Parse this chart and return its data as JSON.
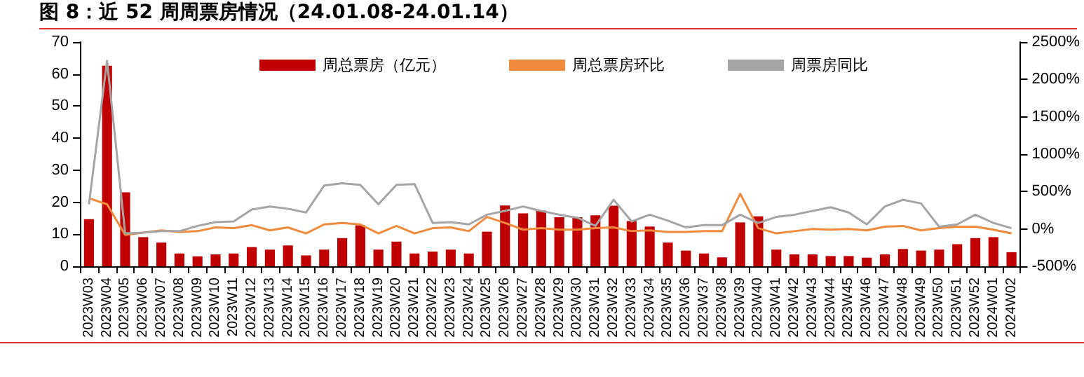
{
  "chart_data": {
    "type": "bar",
    "title": "图 8：近 52 周周票房情况（24.01.08-24.01.14）",
    "categories": [
      "2023W03",
      "2023W04",
      "2023W05",
      "2023W06",
      "2023W07",
      "2023W08",
      "2023W09",
      "2023W10",
      "2023W11",
      "2023W12",
      "2023W13",
      "2023W14",
      "2023W15",
      "2023W16",
      "2023W17",
      "2023W18",
      "2023W19",
      "2023W20",
      "2023W21",
      "2023W22",
      "2023W23",
      "2023W24",
      "2023W25",
      "2023W26",
      "2023W27",
      "2023W28",
      "2023W29",
      "2023W30",
      "2023W31",
      "2023W32",
      "2023W33",
      "2023W34",
      "2023W35",
      "2023W36",
      "2023W37",
      "2023W38",
      "2023W39",
      "2023W40",
      "2023W41",
      "2023W42",
      "2023W43",
      "2023W44",
      "2023W45",
      "2023W46",
      "2023W47",
      "2023W48",
      "2023W49",
      "2023W50",
      "2023W51",
      "2023W52",
      "2024W01",
      "2024W02"
    ],
    "series": [
      {
        "name": "周总票房（亿元）",
        "color": "#c00000",
        "values": [
          14.7,
          62.6,
          23.1,
          9.1,
          7.4,
          4.0,
          3.1,
          3.7,
          4.0,
          6.0,
          5.2,
          6.5,
          3.4,
          5.2,
          8.8,
          12.8,
          5.2,
          7.7,
          4.0,
          4.6,
          5.2,
          4.0,
          10.8,
          19.0,
          16.5,
          17.4,
          15.3,
          15.3,
          15.9,
          18.9,
          14.1,
          12.4,
          7.4,
          4.9,
          4.0,
          2.8,
          13.7,
          15.6,
          5.2,
          3.7,
          3.7,
          3.2,
          3.2,
          2.7,
          3.7,
          5.4,
          4.9,
          5.2,
          6.9,
          8.8,
          9.1,
          4.4
        ]
      },
      {
        "name": "周总票房环比",
        "type": "line",
        "axis": "y2",
        "color": "#f08a3c",
        "values": [
          410,
          330,
          -80,
          -50,
          -20,
          -40,
          -30,
          20,
          10,
          50,
          -20,
          20,
          -60,
          60,
          80,
          60,
          -60,
          40,
          -60,
          10,
          20,
          -30,
          160,
          80,
          -10,
          10,
          -10,
          -10,
          10,
          20,
          -30,
          -20,
          -40,
          -40,
          -30,
          -30,
          470,
          10,
          -60,
          -30,
          0,
          -10,
          0,
          -20,
          30,
          40,
          -20,
          10,
          30,
          30,
          -10,
          -60
        ]
      },
      {
        "name": "周票房同比",
        "type": "line",
        "axis": "y2",
        "color": "#a5a5a5",
        "values": [
          330,
          2250,
          -60,
          -50,
          -30,
          -30,
          40,
          90,
          100,
          260,
          300,
          270,
          220,
          580,
          610,
          590,
          330,
          590,
          600,
          80,
          90,
          60,
          190,
          240,
          300,
          240,
          190,
          150,
          40,
          390,
          100,
          190,
          110,
          20,
          50,
          50,
          190,
          80,
          160,
          190,
          240,
          290,
          220,
          60,
          300,
          390,
          340,
          30,
          60,
          190,
          80,
          10
        ]
      }
    ],
    "ylim": [
      0,
      70
    ],
    "yticks": [
      0,
      10,
      20,
      30,
      40,
      50,
      60,
      70
    ],
    "y2lim": [
      -500,
      2500
    ],
    "y2ticks": [
      {
        "value": -500,
        "label": "-500%"
      },
      {
        "value": 0,
        "label": "0%"
      },
      {
        "value": 500,
        "label": "500%"
      },
      {
        "value": 1000,
        "label": "1000%"
      },
      {
        "value": 1500,
        "label": "1500%"
      },
      {
        "value": 2000,
        "label": "2000%"
      },
      {
        "value": 2500,
        "label": "2500%"
      }
    ],
    "grid": false,
    "legend": "top",
    "marker": "none",
    "line_style": "solid"
  }
}
